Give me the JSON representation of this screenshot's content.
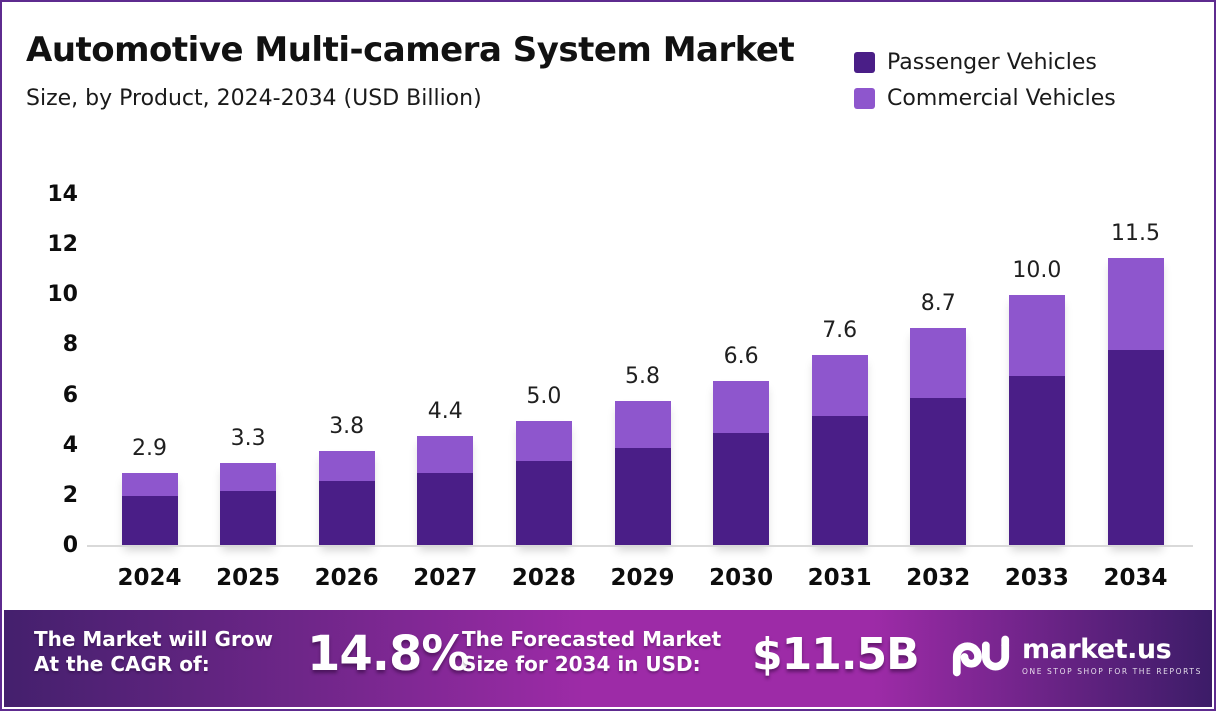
{
  "header": {
    "title": "Automotive Multi-camera System Market",
    "subtitle": "Size, by Product, 2024-2034 (USD Billion)"
  },
  "legend": {
    "items": [
      {
        "label": "Passenger Vehicles",
        "color": "#4a1e87"
      },
      {
        "label": "Commercial Vehicles",
        "color": "#8e56cd"
      }
    ]
  },
  "chart_data": {
    "type": "bar",
    "stacked": true,
    "title": "Automotive Multi-camera System Market",
    "subtitle": "Size, by Product, 2024-2034 (USD Billion)",
    "xlabel": "",
    "ylabel": "USD Billion",
    "categories": [
      "2024",
      "2025",
      "2026",
      "2027",
      "2028",
      "2029",
      "2030",
      "2031",
      "2032",
      "2033",
      "2034"
    ],
    "series": [
      {
        "name": "Passenger Vehicles",
        "color": "#4a1e87",
        "values": [
          2.0,
          2.2,
          2.6,
          2.9,
          3.4,
          3.9,
          4.5,
          5.2,
          5.9,
          6.8,
          7.8
        ]
      },
      {
        "name": "Commercial Vehicles",
        "color": "#8e56cd",
        "values": [
          0.9,
          1.1,
          1.2,
          1.5,
          1.6,
          1.9,
          2.1,
          2.4,
          2.8,
          3.2,
          3.7
        ]
      }
    ],
    "totals": [
      2.9,
      3.3,
      3.8,
      4.4,
      5.0,
      5.8,
      6.6,
      7.6,
      8.7,
      10.0,
      11.5
    ],
    "total_labels": [
      "2.9",
      "3.3",
      "3.8",
      "4.4",
      "5.0",
      "5.8",
      "6.6",
      "7.6",
      "8.7",
      "10.0",
      "11.5"
    ],
    "ylim": [
      0,
      14
    ],
    "yticks": [
      0,
      2,
      4,
      6,
      8,
      10,
      12,
      14
    ],
    "grid": false,
    "legend_position": "top-right"
  },
  "banner": {
    "cagr_label_line1": "The Market will Grow",
    "cagr_label_line2": "At the CAGR of:",
    "cagr_value": "14.8%",
    "forecast_label_line1": "The Forecasted Market",
    "forecast_label_line2": "Size for 2034 in USD:",
    "forecast_value": "$11.5B",
    "logo_text": "market.us",
    "logo_tagline": "ONE STOP SHOP FOR THE REPORTS"
  }
}
